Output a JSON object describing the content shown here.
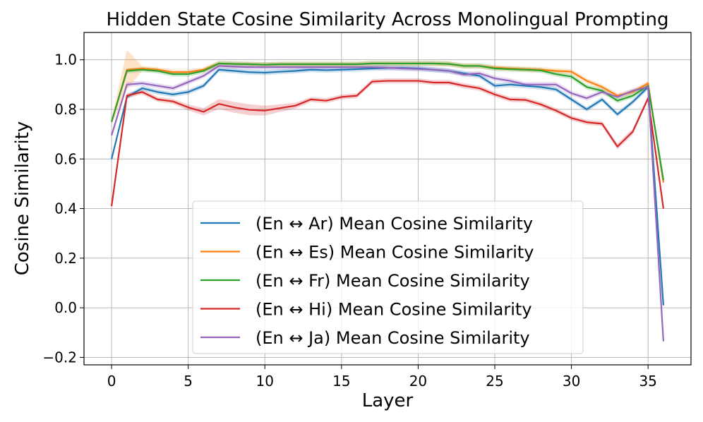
{
  "chart_data": {
    "type": "line",
    "title": "Hidden State Cosine Similarity Across Monolingual Prompting",
    "xlabel": "Layer",
    "ylabel": "Cosine Similarity",
    "xlim": [
      -1.8,
      37.8
    ],
    "ylim": [
      -0.23,
      1.11
    ],
    "xticks": [
      0,
      5,
      10,
      15,
      20,
      25,
      30,
      35
    ],
    "xtick_labels": [
      "0",
      "5",
      "10",
      "15",
      "20",
      "25",
      "30",
      "35"
    ],
    "yticks": [
      -0.2,
      0.0,
      0.2,
      0.4,
      0.6,
      0.8,
      1.0
    ],
    "ytick_labels": [
      "−0.2",
      "0.0",
      "0.2",
      "0.4",
      "0.6",
      "0.8",
      "1.0"
    ],
    "grid": true,
    "legend_position": "lower-center",
    "x": [
      0,
      1,
      2,
      3,
      4,
      5,
      6,
      7,
      8,
      9,
      10,
      11,
      12,
      13,
      14,
      15,
      16,
      17,
      18,
      19,
      20,
      21,
      22,
      23,
      24,
      25,
      26,
      27,
      28,
      29,
      30,
      31,
      32,
      33,
      34,
      35,
      36
    ],
    "series": [
      {
        "name": "(En ↔ Ar) Mean Cosine Similarity",
        "color": "#1f77b4",
        "values": [
          0.6,
          0.85,
          0.885,
          0.87,
          0.86,
          0.87,
          0.895,
          0.96,
          0.955,
          0.95,
          0.948,
          0.952,
          0.955,
          0.96,
          0.958,
          0.96,
          0.962,
          0.965,
          0.967,
          0.967,
          0.965,
          0.96,
          0.955,
          0.945,
          0.935,
          0.895,
          0.9,
          0.895,
          0.89,
          0.88,
          0.84,
          0.8,
          0.84,
          0.78,
          0.83,
          0.89,
          0.01
        ],
        "band": [
          0.01,
          0.01,
          0.01,
          0.01,
          0.01,
          0.01,
          0.01,
          0.01,
          0.01,
          0.01,
          0.01,
          0.01,
          0.01,
          0.01,
          0.01,
          0.01,
          0.01,
          0.01,
          0.01,
          0.01,
          0.01,
          0.01,
          0.01,
          0.01,
          0.01,
          0.01,
          0.01,
          0.01,
          0.01,
          0.01,
          0.01,
          0.01,
          0.01,
          0.01,
          0.01,
          0.01,
          0.01
        ]
      },
      {
        "name": "(En ↔ Es) Mean Cosine Similarity",
        "color": "#ff7f0e",
        "values": [
          0.75,
          0.96,
          0.965,
          0.96,
          0.95,
          0.95,
          0.96,
          0.985,
          0.983,
          0.982,
          0.98,
          0.982,
          0.982,
          0.982,
          0.982,
          0.982,
          0.982,
          0.985,
          0.985,
          0.985,
          0.985,
          0.985,
          0.983,
          0.975,
          0.975,
          0.968,
          0.965,
          0.962,
          0.96,
          0.955,
          0.952,
          0.915,
          0.89,
          0.855,
          0.87,
          0.905,
          0.505
        ],
        "band": [
          0.01,
          0.08,
          0.01,
          0.01,
          0.01,
          0.01,
          0.01,
          0.01,
          0.01,
          0.01,
          0.01,
          0.01,
          0.01,
          0.01,
          0.01,
          0.01,
          0.01,
          0.01,
          0.01,
          0.01,
          0.01,
          0.01,
          0.01,
          0.01,
          0.01,
          0.01,
          0.01,
          0.01,
          0.01,
          0.01,
          0.01,
          0.01,
          0.01,
          0.01,
          0.01,
          0.01,
          0.01
        ]
      },
      {
        "name": "(En ↔ Fr) Mean Cosine Similarity",
        "color": "#2ca02c",
        "values": [
          0.75,
          0.955,
          0.96,
          0.955,
          0.942,
          0.942,
          0.955,
          0.985,
          0.983,
          0.982,
          0.98,
          0.982,
          0.982,
          0.982,
          0.982,
          0.982,
          0.982,
          0.985,
          0.985,
          0.985,
          0.985,
          0.985,
          0.983,
          0.975,
          0.975,
          0.965,
          0.962,
          0.96,
          0.957,
          0.942,
          0.932,
          0.89,
          0.875,
          0.835,
          0.855,
          0.895,
          0.515
        ],
        "band": [
          0.01,
          0.01,
          0.01,
          0.01,
          0.01,
          0.01,
          0.01,
          0.01,
          0.01,
          0.01,
          0.01,
          0.01,
          0.01,
          0.01,
          0.01,
          0.01,
          0.01,
          0.01,
          0.01,
          0.01,
          0.01,
          0.01,
          0.01,
          0.01,
          0.01,
          0.01,
          0.01,
          0.01,
          0.01,
          0.01,
          0.01,
          0.01,
          0.01,
          0.01,
          0.01,
          0.01,
          0.01
        ]
      },
      {
        "name": "(En ↔ Hi) Mean Cosine Similarity",
        "color": "#d62728",
        "values": [
          0.41,
          0.855,
          0.87,
          0.84,
          0.832,
          0.808,
          0.79,
          0.822,
          0.808,
          0.798,
          0.795,
          0.805,
          0.815,
          0.84,
          0.835,
          0.85,
          0.855,
          0.912,
          0.915,
          0.915,
          0.915,
          0.908,
          0.908,
          0.895,
          0.885,
          0.86,
          0.84,
          0.838,
          0.82,
          0.795,
          0.765,
          0.748,
          0.742,
          0.65,
          0.71,
          0.845,
          0.4
        ],
        "band": [
          0.01,
          0.01,
          0.01,
          0.01,
          0.01,
          0.012,
          0.015,
          0.02,
          0.022,
          0.022,
          0.02,
          0.015,
          0.012,
          0.01,
          0.01,
          0.01,
          0.01,
          0.01,
          0.01,
          0.01,
          0.01,
          0.01,
          0.01,
          0.01,
          0.01,
          0.01,
          0.01,
          0.01,
          0.01,
          0.01,
          0.01,
          0.01,
          0.01,
          0.012,
          0.012,
          0.01,
          0.01
        ]
      },
      {
        "name": "(En ↔ Ja) Mean Cosine Similarity",
        "color": "#9467bd",
        "values": [
          0.695,
          0.9,
          0.905,
          0.895,
          0.885,
          0.91,
          0.935,
          0.975,
          0.972,
          0.97,
          0.97,
          0.97,
          0.97,
          0.97,
          0.97,
          0.97,
          0.97,
          0.97,
          0.968,
          0.965,
          0.963,
          0.96,
          0.955,
          0.94,
          0.945,
          0.925,
          0.915,
          0.9,
          0.9,
          0.9,
          0.865,
          0.845,
          0.87,
          0.85,
          0.875,
          0.89,
          -0.135
        ],
        "band": [
          0.01,
          0.01,
          0.01,
          0.01,
          0.01,
          0.01,
          0.01,
          0.01,
          0.01,
          0.01,
          0.01,
          0.01,
          0.01,
          0.01,
          0.01,
          0.01,
          0.01,
          0.01,
          0.01,
          0.01,
          0.01,
          0.01,
          0.01,
          0.01,
          0.01,
          0.01,
          0.01,
          0.01,
          0.01,
          0.01,
          0.01,
          0.01,
          0.01,
          0.01,
          0.01,
          0.01,
          0.01
        ]
      }
    ]
  }
}
